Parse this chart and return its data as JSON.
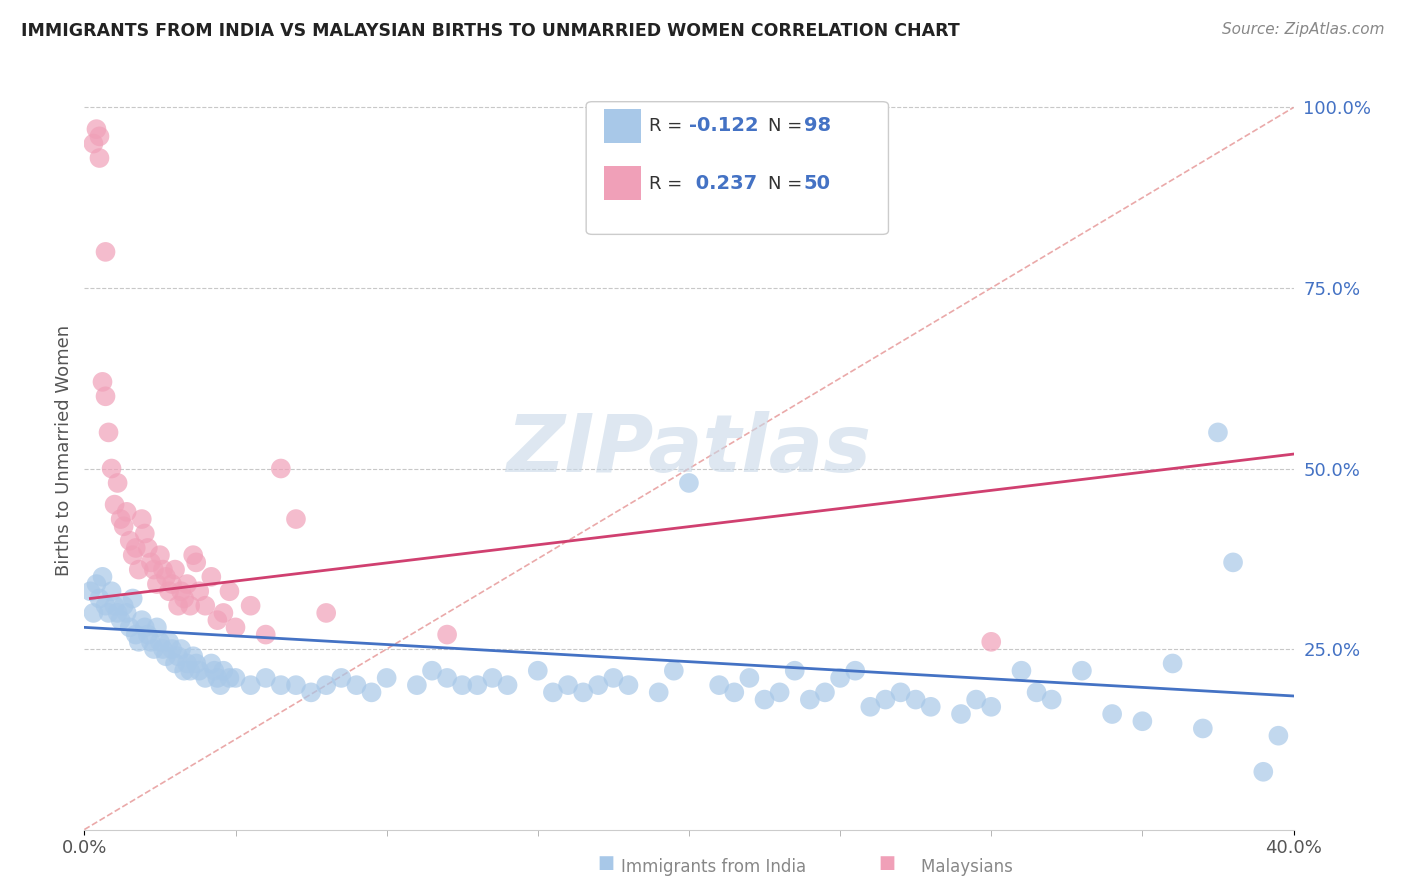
{
  "title": "IMMIGRANTS FROM INDIA VS MALAYSIAN BIRTHS TO UNMARRIED WOMEN CORRELATION CHART",
  "source": "Source: ZipAtlas.com",
  "ylabel": "Births to Unmarried Women",
  "xlim": [
    0.0,
    0.4
  ],
  "ylim": [
    0.0,
    1.05
  ],
  "color_india": "#a8c8e8",
  "color_malaysia": "#f0a0b8",
  "color_line_india": "#4472c4",
  "color_line_malaysia": "#d04070",
  "color_diag": "#e08080",
  "background": "#ffffff",
  "india_points": [
    [
      0.002,
      0.33
    ],
    [
      0.003,
      0.3
    ],
    [
      0.004,
      0.34
    ],
    [
      0.005,
      0.32
    ],
    [
      0.006,
      0.35
    ],
    [
      0.007,
      0.31
    ],
    [
      0.008,
      0.3
    ],
    [
      0.009,
      0.33
    ],
    [
      0.01,
      0.31
    ],
    [
      0.011,
      0.3
    ],
    [
      0.012,
      0.29
    ],
    [
      0.013,
      0.31
    ],
    [
      0.014,
      0.3
    ],
    [
      0.015,
      0.28
    ],
    [
      0.016,
      0.32
    ],
    [
      0.017,
      0.27
    ],
    [
      0.018,
      0.26
    ],
    [
      0.019,
      0.29
    ],
    [
      0.02,
      0.28
    ],
    [
      0.021,
      0.27
    ],
    [
      0.022,
      0.26
    ],
    [
      0.023,
      0.25
    ],
    [
      0.024,
      0.28
    ],
    [
      0.025,
      0.26
    ],
    [
      0.026,
      0.25
    ],
    [
      0.027,
      0.24
    ],
    [
      0.028,
      0.26
    ],
    [
      0.029,
      0.25
    ],
    [
      0.03,
      0.23
    ],
    [
      0.031,
      0.24
    ],
    [
      0.032,
      0.25
    ],
    [
      0.033,
      0.22
    ],
    [
      0.034,
      0.23
    ],
    [
      0.035,
      0.22
    ],
    [
      0.036,
      0.24
    ],
    [
      0.037,
      0.23
    ],
    [
      0.038,
      0.22
    ],
    [
      0.04,
      0.21
    ],
    [
      0.042,
      0.23
    ],
    [
      0.043,
      0.22
    ],
    [
      0.044,
      0.21
    ],
    [
      0.045,
      0.2
    ],
    [
      0.046,
      0.22
    ],
    [
      0.048,
      0.21
    ],
    [
      0.05,
      0.21
    ],
    [
      0.055,
      0.2
    ],
    [
      0.06,
      0.21
    ],
    [
      0.065,
      0.2
    ],
    [
      0.07,
      0.2
    ],
    [
      0.075,
      0.19
    ],
    [
      0.08,
      0.2
    ],
    [
      0.085,
      0.21
    ],
    [
      0.09,
      0.2
    ],
    [
      0.095,
      0.19
    ],
    [
      0.1,
      0.21
    ],
    [
      0.11,
      0.2
    ],
    [
      0.115,
      0.22
    ],
    [
      0.12,
      0.21
    ],
    [
      0.125,
      0.2
    ],
    [
      0.13,
      0.2
    ],
    [
      0.135,
      0.21
    ],
    [
      0.14,
      0.2
    ],
    [
      0.15,
      0.22
    ],
    [
      0.155,
      0.19
    ],
    [
      0.16,
      0.2
    ],
    [
      0.165,
      0.19
    ],
    [
      0.17,
      0.2
    ],
    [
      0.175,
      0.21
    ],
    [
      0.18,
      0.2
    ],
    [
      0.19,
      0.19
    ],
    [
      0.195,
      0.22
    ],
    [
      0.2,
      0.48
    ],
    [
      0.21,
      0.2
    ],
    [
      0.215,
      0.19
    ],
    [
      0.22,
      0.21
    ],
    [
      0.225,
      0.18
    ],
    [
      0.23,
      0.19
    ],
    [
      0.235,
      0.22
    ],
    [
      0.24,
      0.18
    ],
    [
      0.245,
      0.19
    ],
    [
      0.25,
      0.21
    ],
    [
      0.255,
      0.22
    ],
    [
      0.26,
      0.17
    ],
    [
      0.265,
      0.18
    ],
    [
      0.27,
      0.19
    ],
    [
      0.275,
      0.18
    ],
    [
      0.28,
      0.17
    ],
    [
      0.29,
      0.16
    ],
    [
      0.295,
      0.18
    ],
    [
      0.3,
      0.17
    ],
    [
      0.31,
      0.22
    ],
    [
      0.315,
      0.19
    ],
    [
      0.32,
      0.18
    ],
    [
      0.33,
      0.22
    ],
    [
      0.34,
      0.16
    ],
    [
      0.35,
      0.15
    ],
    [
      0.36,
      0.23
    ],
    [
      0.37,
      0.14
    ],
    [
      0.375,
      0.55
    ],
    [
      0.38,
      0.37
    ],
    [
      0.39,
      0.08
    ],
    [
      0.395,
      0.13
    ]
  ],
  "malaysia_points": [
    [
      0.003,
      0.95
    ],
    [
      0.004,
      0.97
    ],
    [
      0.005,
      0.96
    ],
    [
      0.005,
      0.93
    ],
    [
      0.006,
      0.62
    ],
    [
      0.007,
      0.6
    ],
    [
      0.007,
      0.8
    ],
    [
      0.008,
      0.55
    ],
    [
      0.009,
      0.5
    ],
    [
      0.01,
      0.45
    ],
    [
      0.011,
      0.48
    ],
    [
      0.012,
      0.43
    ],
    [
      0.013,
      0.42
    ],
    [
      0.014,
      0.44
    ],
    [
      0.015,
      0.4
    ],
    [
      0.016,
      0.38
    ],
    [
      0.017,
      0.39
    ],
    [
      0.018,
      0.36
    ],
    [
      0.019,
      0.43
    ],
    [
      0.02,
      0.41
    ],
    [
      0.021,
      0.39
    ],
    [
      0.022,
      0.37
    ],
    [
      0.023,
      0.36
    ],
    [
      0.024,
      0.34
    ],
    [
      0.025,
      0.38
    ],
    [
      0.026,
      0.36
    ],
    [
      0.027,
      0.35
    ],
    [
      0.028,
      0.33
    ],
    [
      0.029,
      0.34
    ],
    [
      0.03,
      0.36
    ],
    [
      0.031,
      0.31
    ],
    [
      0.032,
      0.33
    ],
    [
      0.033,
      0.32
    ],
    [
      0.034,
      0.34
    ],
    [
      0.035,
      0.31
    ],
    [
      0.036,
      0.38
    ],
    [
      0.037,
      0.37
    ],
    [
      0.038,
      0.33
    ],
    [
      0.04,
      0.31
    ],
    [
      0.042,
      0.35
    ],
    [
      0.044,
      0.29
    ],
    [
      0.046,
      0.3
    ],
    [
      0.048,
      0.33
    ],
    [
      0.05,
      0.28
    ],
    [
      0.055,
      0.31
    ],
    [
      0.06,
      0.27
    ],
    [
      0.065,
      0.5
    ],
    [
      0.07,
      0.43
    ],
    [
      0.08,
      0.3
    ],
    [
      0.12,
      0.27
    ],
    [
      0.3,
      0.26
    ]
  ],
  "india_trend_x": [
    0.0,
    0.4
  ],
  "india_trend_y": [
    0.28,
    0.185
  ],
  "malaysia_trend_x": [
    0.002,
    0.4
  ],
  "malaysia_trend_y": [
    0.32,
    0.52
  ]
}
